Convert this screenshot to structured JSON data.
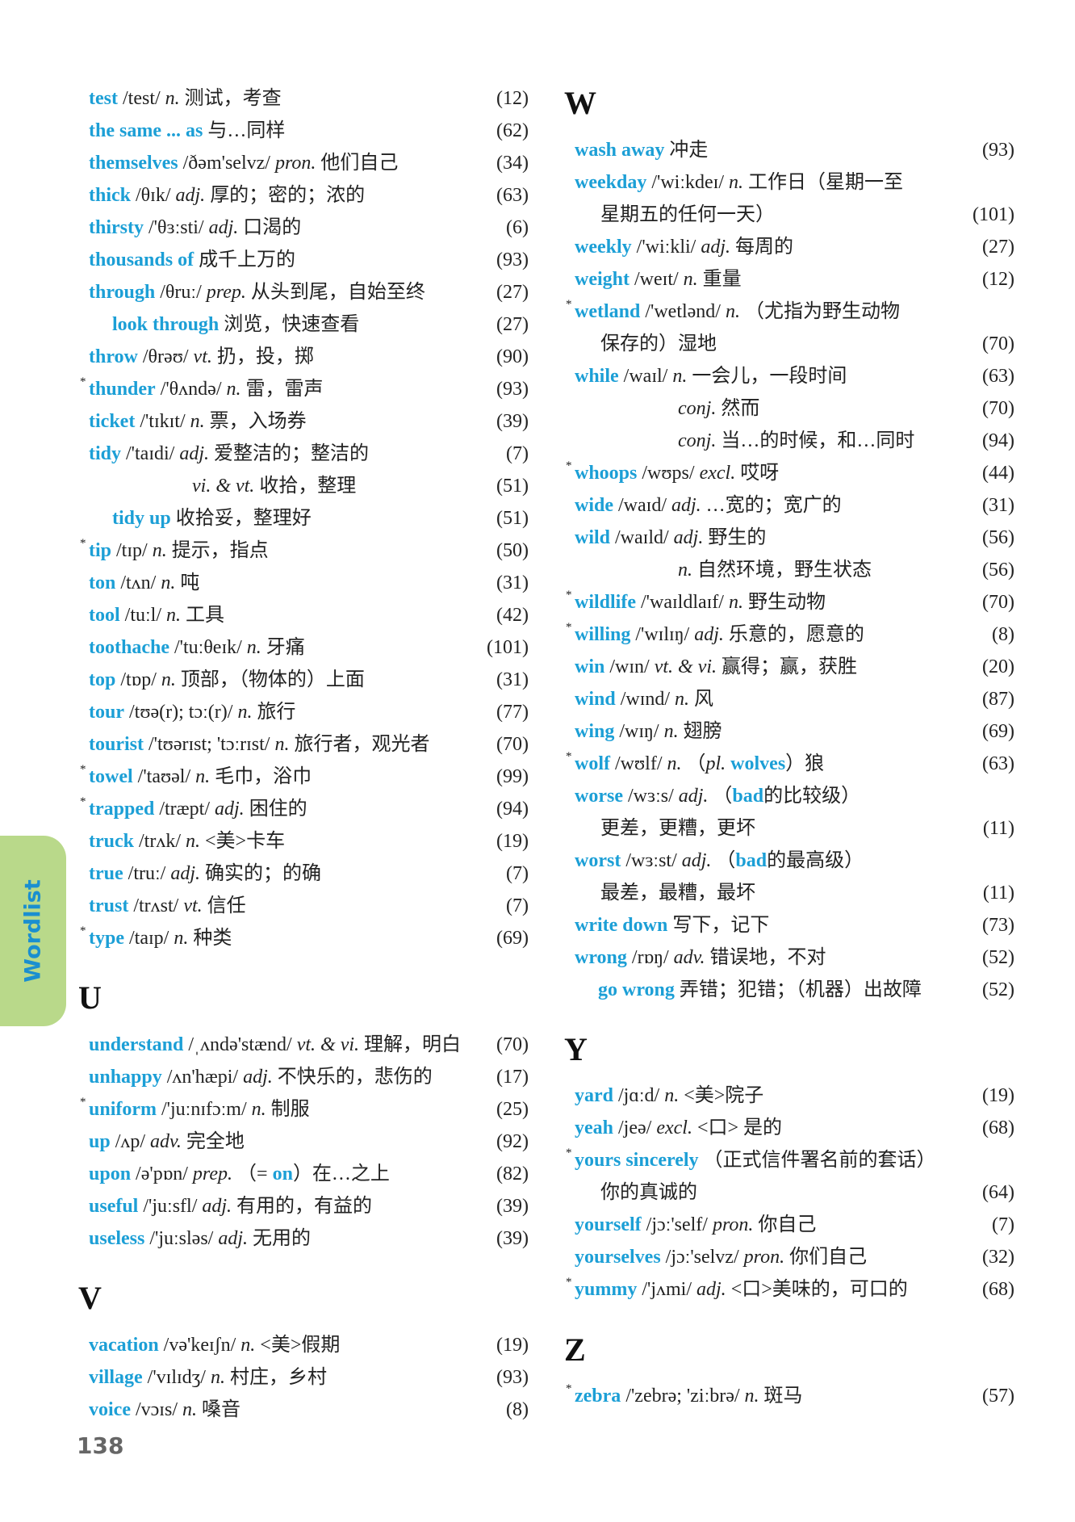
{
  "colors": {
    "headword": "#1c9fd6",
    "tab": "#b9d98a",
    "tab_text": "#1a8fd0"
  },
  "side_tab": "Wordlist",
  "page_number": "138",
  "sections": [
    {
      "id": "t",
      "letter": "",
      "entries": [
        {
          "head": "test",
          "phon": "/test/",
          "pos": "n.",
          "def": "测试，考查",
          "page": "(12)"
        },
        {
          "head": "the same ... as",
          "def": "与…同样",
          "page": "(62)"
        },
        {
          "head": "themselves",
          "phon": "/ðəm'selvz/",
          "pos": "pron.",
          "def": "他们自己",
          "page": "(34)"
        },
        {
          "head": "thick",
          "phon": "/θɪk/",
          "pos": "adj.",
          "def": "厚的；密的；浓的",
          "page": "(63)"
        },
        {
          "head": "thirsty",
          "phon": "/'θɜːsti/",
          "pos": "adj.",
          "def": "口渴的",
          "page": "(6)"
        },
        {
          "head": "thousands of",
          "def": "成千上万的",
          "page": "(93)"
        },
        {
          "head": "through",
          "phon": "/θruː/",
          "pos": "prep.",
          "def": "从头到尾，自始至终",
          "page": "(27)"
        },
        {
          "kind": "phrase",
          "head": "look through",
          "def": "浏览，快速查看",
          "page": "(27)"
        },
        {
          "head": "throw",
          "phon": "/θrəʊ/",
          "pos": "vt.",
          "def": "扔，投，掷",
          "page": "(90)"
        },
        {
          "star": "*",
          "head": "thunder",
          "phon": "/'θʌndə/",
          "pos": "n.",
          "def": "雷，雷声",
          "page": "(93)"
        },
        {
          "head": "ticket",
          "phon": "/'tɪkɪt/",
          "pos": "n.",
          "def": "票，入场券",
          "page": "(39)"
        },
        {
          "head": "tidy",
          "phon": "/'taɪdi/",
          "pos": "adj.",
          "def": "爱整洁的；整洁的",
          "page": "(7)"
        },
        {
          "kind": "sense",
          "pos": "vi. & vt.",
          "def": "收拾，整理",
          "page": "(51)"
        },
        {
          "kind": "phrase",
          "head": "tidy up",
          "def": "收拾妥，整理好",
          "page": "(51)"
        },
        {
          "star": "*",
          "head": "tip",
          "phon": "/tɪp/",
          "pos": "n.",
          "def": "提示，指点",
          "page": "(50)"
        },
        {
          "head": "ton",
          "phon": "/tʌn/",
          "pos": "n.",
          "def": "吨",
          "page": "(31)"
        },
        {
          "head": "tool",
          "phon": "/tuːl/",
          "pos": "n.",
          "def": "工具",
          "page": "(42)"
        },
        {
          "head": "toothache",
          "phon": "/'tuːθeɪk/",
          "pos": "n.",
          "def": "牙痛",
          "page": "(101)"
        },
        {
          "head": "top",
          "phon": "/tɒp/",
          "pos": "n.",
          "def": "顶部，（物体的）上面",
          "page": "(31)"
        },
        {
          "head": "tour",
          "phon": "/tʊə(r); tɔː(r)/",
          "pos": "n.",
          "def": "旅行",
          "page": "(77)"
        },
        {
          "head": "tourist",
          "phon": "/'tʊərɪst; 'tɔːrɪst/",
          "pos": "n.",
          "def": "旅行者，观光者",
          "page": "(70)"
        },
        {
          "star": "*",
          "head": "towel",
          "phon": "/'taʊəl/",
          "pos": "n.",
          "def": "毛巾，浴巾",
          "page": "(99)"
        },
        {
          "star": "*",
          "head": "trapped",
          "phon": "/træpt/",
          "pos": "adj.",
          "def": "困住的",
          "page": "(94)"
        },
        {
          "head": "truck",
          "phon": "/trʌk/",
          "pos": "n.",
          "def": "<美>卡车",
          "page": "(19)"
        },
        {
          "head": "true",
          "phon": "/truː/",
          "pos": "adj.",
          "def": "确实的；的确",
          "page": "(7)"
        },
        {
          "head": "trust",
          "phon": "/trʌst/",
          "pos": "vt.",
          "def": "信任",
          "page": "(7)"
        },
        {
          "star": "*",
          "head": "type",
          "phon": "/taɪp/",
          "pos": "n.",
          "def": "种类",
          "page": "(69)"
        }
      ]
    },
    {
      "id": "u",
      "letter": "U",
      "entries": [
        {
          "head": "understand",
          "phon": "/ˌʌndə'stænd/",
          "pos": "vt. & vi.",
          "def": "理解，明白",
          "page": "(70)"
        },
        {
          "head": "unhappy",
          "phon": "/ʌn'hæpi/",
          "pos": "adj.",
          "def": "不快乐的，悲伤的",
          "page": "(17)"
        },
        {
          "star": "*",
          "head": "uniform",
          "phon": "/'juːnɪfɔːm/",
          "pos": "n.",
          "def": "制服",
          "page": "(25)"
        },
        {
          "head": "up",
          "phon": "/ʌp/",
          "pos": "adv.",
          "def": "完全地",
          "page": "(92)"
        },
        {
          "head": "upon",
          "phon": "/ə'pɒn/",
          "pos": "prep.",
          "parts": [
            {
              "t": "（= "
            },
            {
              "t": "on",
              "s": "b"
            },
            {
              "t": "）在…之上"
            }
          ],
          "page": "(82)"
        },
        {
          "head": "useful",
          "phon": "/'juːsfl/",
          "pos": "adj.",
          "def": "有用的，有益的",
          "page": "(39)"
        },
        {
          "head": "useless",
          "phon": "/'juːsləs/",
          "pos": "adj.",
          "def": "无用的",
          "page": "(39)"
        }
      ]
    },
    {
      "id": "v",
      "letter": "V",
      "entries": [
        {
          "head": "vacation",
          "phon": "/və'keɪʃn/",
          "pos": "n.",
          "def": "<美>假期",
          "page": "(19)"
        },
        {
          "head": "village",
          "phon": "/'vɪlɪdʒ/",
          "pos": "n.",
          "def": "村庄，乡村",
          "page": "(93)"
        },
        {
          "head": "voice",
          "phon": "/vɔɪs/",
          "pos": "n.",
          "def": "嗓音",
          "page": "(8)"
        }
      ]
    },
    {
      "id": "w",
      "letter": "W",
      "entries": [
        {
          "head": "wash away",
          "def": "冲走",
          "page": "(93)"
        },
        {
          "head": "weekday",
          "phon": "/'wiːkdeɪ/",
          "pos": "n.",
          "def": "工作日（星期一至"
        },
        {
          "kind": "cont",
          "def": "星期五的任何一天）",
          "page": "(101)"
        },
        {
          "head": "weekly",
          "phon": "/'wiːkli/",
          "pos": "adj.",
          "def": "每周的",
          "page": "(27)"
        },
        {
          "head": "weight",
          "phon": "/weɪt/",
          "pos": "n.",
          "def": "重量",
          "page": "(12)"
        },
        {
          "star": "*",
          "head": "wetland",
          "phon": "/'wetlənd/",
          "pos": "n.",
          "def": "（尤指为野生动物"
        },
        {
          "kind": "cont",
          "def": "保存的）湿地",
          "page": "(70)"
        },
        {
          "head": "while",
          "phon": "/waɪl/",
          "pos": "n.",
          "def": "一会儿，一段时间",
          "page": "(63)"
        },
        {
          "kind": "sense",
          "pos": "conj.",
          "def": "然而",
          "page": "(70)"
        },
        {
          "kind": "sense",
          "pos": "conj.",
          "def": "当…的时候，和…同时",
          "page": "(94)"
        },
        {
          "star": "*",
          "head": "whoops",
          "phon": "/wʊps/",
          "pos": "excl.",
          "def": "哎呀",
          "page": "(44)"
        },
        {
          "head": "wide",
          "phon": "/waɪd/",
          "pos": "adj.",
          "def": "…宽的；宽广的",
          "page": "(31)"
        },
        {
          "head": "wild",
          "phon": "/waɪld/",
          "pos": "adj.",
          "def": "野生的",
          "page": "(56)"
        },
        {
          "kind": "sense",
          "pos": "n.",
          "def": "自然环境，野生状态",
          "page": "(56)"
        },
        {
          "star": "*",
          "head": "wildlife",
          "phon": "/'waɪldlaɪf/",
          "pos": "n.",
          "def": "野生动物",
          "page": "(70)"
        },
        {
          "star": "*",
          "head": "willing",
          "phon": "/'wɪlɪŋ/",
          "pos": "adj.",
          "def": "乐意的，愿意的",
          "page": "(8)"
        },
        {
          "head": "win",
          "phon": "/wɪn/",
          "pos": "vt. & vi.",
          "def": "赢得；赢，获胜",
          "page": "(20)"
        },
        {
          "head": "wind",
          "phon": "/wɪnd/",
          "pos": "n.",
          "def": "风",
          "page": "(87)"
        },
        {
          "head": "wing",
          "phon": "/wɪŋ/",
          "pos": "n.",
          "def": "翅膀",
          "page": "(69)"
        },
        {
          "star": "*",
          "head": "wolf",
          "phon": "/wʊlf/",
          "pos": "n.",
          "parts": [
            {
              "t": "（"
            },
            {
              "t": "pl.",
              "s": "i"
            },
            {
              "t": " "
            },
            {
              "t": "wolves",
              "s": "b"
            },
            {
              "t": "）狼"
            }
          ],
          "page": "(63)"
        },
        {
          "head": "worse",
          "phon": "/wɜːs/",
          "pos": "adj.",
          "parts": [
            {
              "t": "（"
            },
            {
              "t": "bad",
              "s": "b"
            },
            {
              "t": "的比较级）"
            }
          ]
        },
        {
          "kind": "cont",
          "def": "更差，更糟，更坏",
          "page": "(11)"
        },
        {
          "head": "worst",
          "phon": "/wɜːst/",
          "pos": "adj.",
          "parts": [
            {
              "t": "（"
            },
            {
              "t": "bad",
              "s": "b"
            },
            {
              "t": "的最高级）"
            }
          ]
        },
        {
          "kind": "cont",
          "def": "最差，最糟，最坏",
          "page": "(11)"
        },
        {
          "head": "write down",
          "def": "写下，记下",
          "page": "(73)"
        },
        {
          "head": "wrong",
          "phon": "/rɒŋ/",
          "pos": "adv.",
          "def": "错误地，不对",
          "page": "(52)"
        },
        {
          "kind": "phrase",
          "head": "go wrong",
          "def": "弄错；犯错；（机器）出故障",
          "page": "(52)"
        }
      ]
    },
    {
      "id": "y",
      "letter": "Y",
      "entries": [
        {
          "head": "yard",
          "phon": "/jɑːd/",
          "pos": "n.",
          "def": "<美>院子",
          "page": "(19)"
        },
        {
          "head": "yeah",
          "phon": "/jeə/",
          "pos": "excl.",
          "def": "<口> 是的",
          "page": "(68)"
        },
        {
          "star": "*",
          "head": "yours sincerely",
          "def": "（正式信件署名前的套话）"
        },
        {
          "kind": "cont",
          "def": "你的真诚的",
          "page": "(64)"
        },
        {
          "head": "yourself",
          "phon": "/jɔː'self/",
          "pos": "pron.",
          "def": "你自己",
          "page": "(7)"
        },
        {
          "head": "yourselves",
          "phon": "/jɔː'selvz/",
          "pos": "pron.",
          "def": "你们自己",
          "page": "(32)"
        },
        {
          "star": "*",
          "head": "yummy",
          "phon": "/'jʌmi/",
          "pos": "adj.",
          "def": "<口>美味的，可口的",
          "page": "(68)"
        }
      ]
    },
    {
      "id": "z",
      "letter": "Z",
      "entries": [
        {
          "star": "*",
          "head": "zebra",
          "phon": "/'zebrə; 'ziːbrə/",
          "pos": "n.",
          "def": "斑马",
          "page": "(57)"
        }
      ]
    }
  ]
}
